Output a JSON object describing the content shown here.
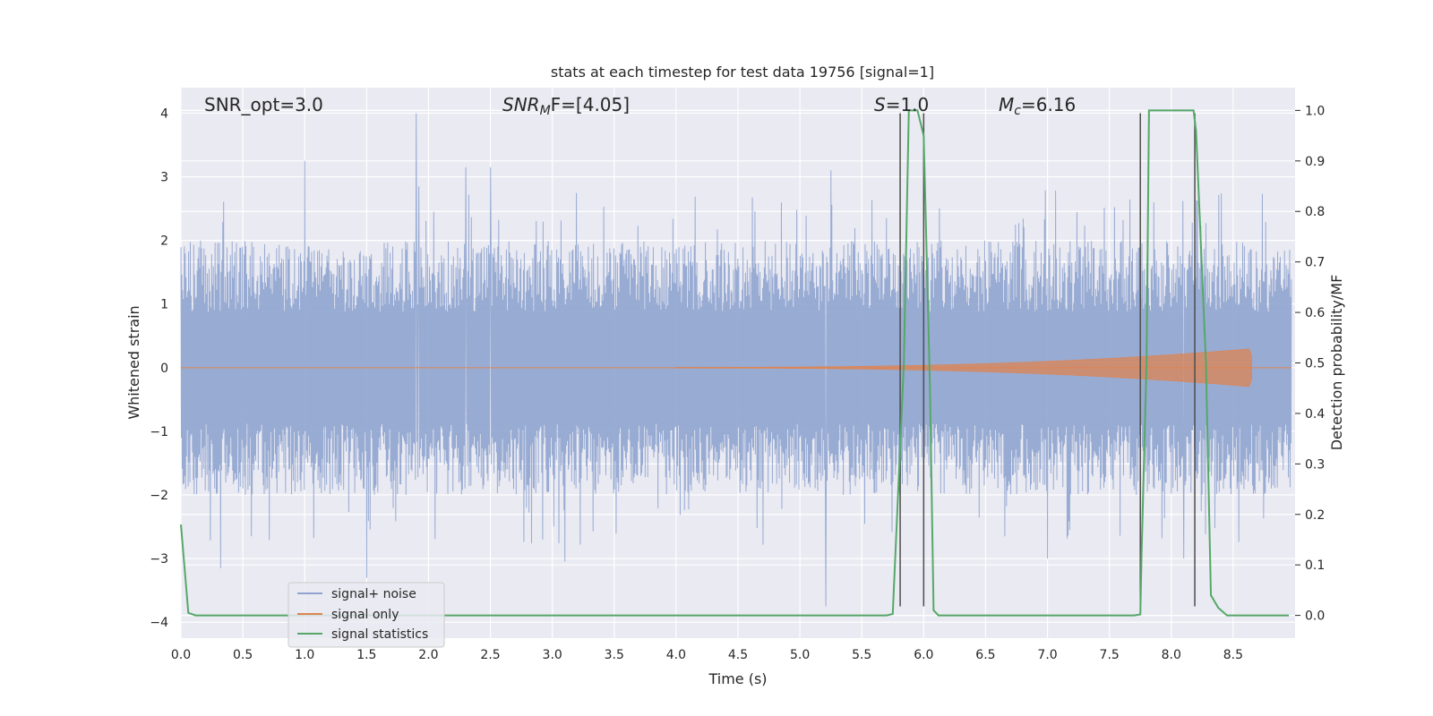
{
  "chart_data": {
    "type": "line",
    "title": "stats at each timestep for test data 19756 [signal=1]",
    "xlabel": "Time (s)",
    "ylabel": "Whitened strain",
    "y2label": "Detection probability/MF",
    "xlim": [
      0.0,
      9.0
    ],
    "ylim": [
      -4.25,
      4.4
    ],
    "y2lim": [
      -0.045,
      1.045
    ],
    "xticks": [
      0.0,
      0.5,
      1.0,
      1.5,
      2.0,
      2.5,
      3.0,
      3.5,
      4.0,
      4.5,
      5.0,
      5.5,
      6.0,
      6.5,
      7.0,
      7.5,
      8.0,
      8.5
    ],
    "xtick_labels": [
      "0.0",
      "0.5",
      "1.0",
      "1.5",
      "2.0",
      "2.5",
      "3.0",
      "3.5",
      "4.0",
      "4.5",
      "5.0",
      "5.5",
      "6.0",
      "6.5",
      "7.0",
      "7.5",
      "8.0",
      "8.5"
    ],
    "yticks": [
      4,
      3,
      2,
      1,
      0,
      -1,
      -2,
      -3,
      -4
    ],
    "ytick_labels": [
      "4",
      "3",
      "2",
      "1",
      "0",
      "−1",
      "−2",
      "−3",
      "−4"
    ],
    "y2ticks": [
      1.0,
      0.9,
      0.8,
      0.7,
      0.6,
      0.5,
      0.4,
      0.3,
      0.2,
      0.1,
      0.0
    ],
    "y2tick_labels": [
      "1.0",
      "0.9",
      "0.8",
      "0.7",
      "0.6",
      "0.5",
      "0.4",
      "0.3",
      "0.2",
      "0.1",
      "0.0"
    ],
    "grid": true,
    "legend_position": "bottom-left",
    "annotations": {
      "snr_opt": "SNR_opt=3.0",
      "snr_mf_main": "SNR",
      "snr_mf_sub": "M",
      "snr_mf_rest": "F=[4.05]",
      "s_main": "S",
      "s_rest": "=1.0",
      "mc_main": "M",
      "mc_sub": "c",
      "mc_rest": "=6.16"
    },
    "series": [
      {
        "name": "signal+ noise",
        "color": "#8fa4cf",
        "noise_envelope": {
          "typical_amplitude": 1.6,
          "peak_max": 4.0,
          "peak_min": -3.75
        },
        "spikes": [
          [
            1.0,
            3.25
          ],
          [
            1.9,
            4.0
          ],
          [
            1.92,
            2.85
          ],
          [
            2.3,
            3.15
          ],
          [
            2.5,
            3.15
          ],
          [
            5.25,
            3.1
          ],
          [
            1.5,
            -3.3
          ],
          [
            0.32,
            -3.15
          ],
          [
            5.21,
            -3.75
          ],
          [
            3.1,
            -3.05
          ],
          [
            7.0,
            -3.0
          ],
          [
            8.1,
            -3.0
          ]
        ]
      },
      {
        "name": "signal only",
        "color": "#dd8452",
        "chirp": {
          "start_time": 4.0,
          "end_time": 8.65,
          "peak_amplitude": 0.3
        }
      },
      {
        "name": "signal statistics",
        "color": "#55a868",
        "axis": "right",
        "points": [
          [
            0.0,
            0.18
          ],
          [
            0.06,
            0.005
          ],
          [
            0.12,
            0.0
          ],
          [
            5.7,
            0.0
          ],
          [
            5.75,
            0.003
          ],
          [
            5.84,
            0.5
          ],
          [
            5.88,
            1.0
          ],
          [
            5.95,
            1.0
          ],
          [
            6.0,
            0.95
          ],
          [
            6.05,
            0.46
          ],
          [
            6.08,
            0.01
          ],
          [
            6.12,
            0.0
          ],
          [
            7.7,
            0.0
          ],
          [
            7.75,
            0.002
          ],
          [
            7.76,
            0.12
          ],
          [
            7.8,
            0.5
          ],
          [
            7.82,
            1.0
          ],
          [
            8.18,
            1.0
          ],
          [
            8.2,
            0.96
          ],
          [
            8.28,
            0.5
          ],
          [
            8.32,
            0.04
          ],
          [
            8.38,
            0.015
          ],
          [
            8.45,
            0.0
          ],
          [
            8.95,
            0.0
          ]
        ]
      }
    ],
    "vertical_markers": [
      {
        "x": 5.81,
        "y_from": -3.75,
        "y_to": 4.0
      },
      {
        "x": 6.0,
        "y_from": -3.75,
        "y_to": 4.0
      },
      {
        "x": 7.75,
        "y_from": -3.75,
        "y_to": 4.0
      },
      {
        "x": 8.19,
        "y_from": -3.75,
        "y_to": 4.0
      }
    ],
    "colors": {
      "plot_background": "#eaeaf2",
      "grid": "#ffffff",
      "text": "#262626",
      "marker_line": "#4d4d4d"
    }
  }
}
